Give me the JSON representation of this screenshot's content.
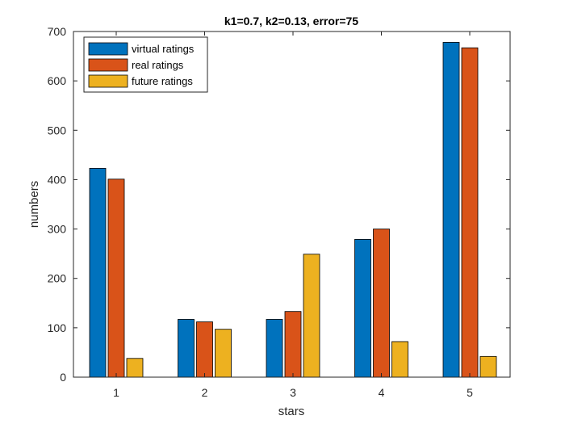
{
  "chart_data": {
    "type": "bar",
    "title": "k1=0.7, k2=0.13, error=75",
    "xlabel": "stars",
    "ylabel": "numbers",
    "categories": [
      "1",
      "2",
      "3",
      "4",
      "5"
    ],
    "yticks": [
      "0",
      "100",
      "200",
      "300",
      "400",
      "500",
      "600",
      "700"
    ],
    "ylim": [
      0,
      700
    ],
    "grid": false,
    "legend_position": "top-left",
    "series": [
      {
        "name": "virtual ratings",
        "color": "#0072BD",
        "values": [
          423,
          117,
          117,
          279,
          678
        ]
      },
      {
        "name": "real ratings",
        "color": "#D95319",
        "values": [
          401,
          112,
          133,
          300,
          667
        ]
      },
      {
        "name": "future ratings",
        "color": "#EDB120",
        "values": [
          38,
          97,
          249,
          72,
          42
        ]
      }
    ]
  }
}
